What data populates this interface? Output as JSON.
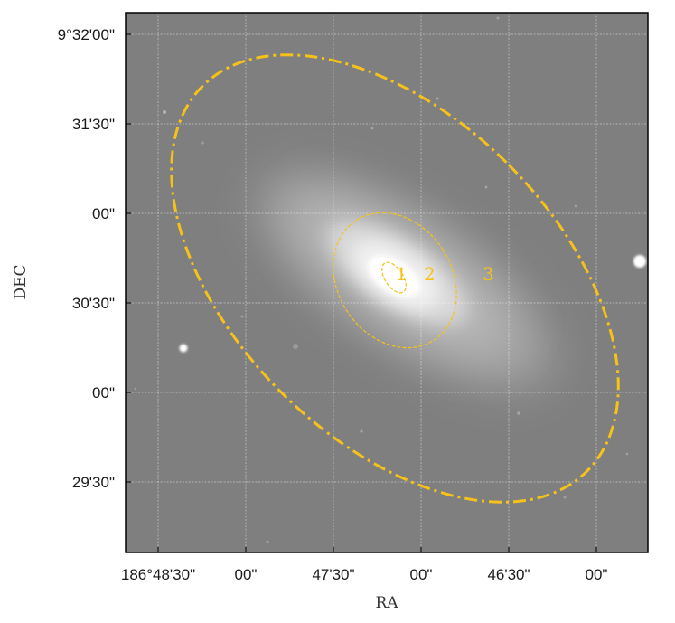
{
  "figure": {
    "xlabel": "RA",
    "ylabel": "DEC",
    "ra_ticks": [
      "186°48'30\"",
      "00\"",
      "47'30\"",
      "00\"",
      "46'30\"",
      "00\""
    ],
    "dec_ticks": [
      "9°32'00\"",
      "31'30\"",
      "00\"",
      "30'30\"",
      "00\"",
      "29'30\""
    ],
    "grid": true,
    "image": "greyscale sky image of an inclined elliptical galaxy",
    "apertures": [
      {
        "label": "1",
        "style": "dashed-thin"
      },
      {
        "label": "2",
        "style": "dashed"
      },
      {
        "label": "3",
        "style": "dash-dot"
      }
    ],
    "colors": {
      "aperture": "#f6c21a",
      "sky": "#808080",
      "frame": "#000000"
    }
  }
}
